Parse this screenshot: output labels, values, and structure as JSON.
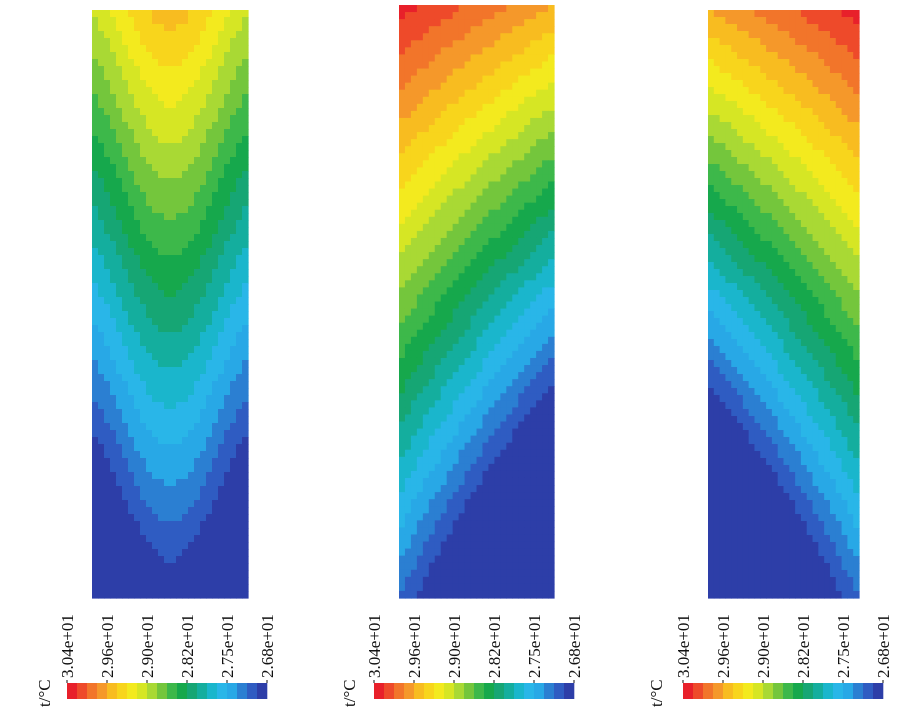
{
  "colormap_colors": [
    "#e8202a",
    "#ee4a2a",
    "#f2752a",
    "#f5982a",
    "#f8bc20",
    "#f8d51c",
    "#f3ea1e",
    "#d6e624",
    "#a9d934",
    "#74c63c",
    "#3db84a",
    "#16a84c",
    "#16a674",
    "#14ae9e",
    "#1ab6cc",
    "#29b6e8",
    "#28a8e6",
    "#2b7fd2",
    "#2f5cc2",
    "#2d3ea8"
  ],
  "chart_data": [
    {
      "type": "heatmap",
      "panel": 1,
      "field": "temperature contour",
      "pattern": "arc",
      "nx": 26,
      "ny": 84,
      "colorbar": {
        "label": "t/°C",
        "tick_labels": [
          "3.04e+01",
          "2.96e+01",
          "2.90e+01",
          "2.82e+01",
          "2.75e+01",
          "2.68e+01"
        ],
        "range": [
          26.8,
          30.4
        ]
      }
    },
    {
      "type": "heatmap",
      "panel": 2,
      "field": "temperature contour",
      "pattern": "hot-top-left",
      "nx": 26,
      "ny": 84,
      "colorbar": {
        "label": "t/°C",
        "tick_labels": [
          "3.04e+01",
          "2.96e+01",
          "2.90e+01",
          "2.82e+01",
          "2.75e+01",
          "2.68e+01"
        ],
        "range": [
          26.8,
          30.4
        ]
      }
    },
    {
      "type": "heatmap",
      "panel": 3,
      "field": "temperature contour",
      "pattern": "hot-top-right",
      "nx": 26,
      "ny": 84,
      "colorbar": {
        "label": "t/°C",
        "tick_labels": [
          "3.04e+01",
          "2.96e+01",
          "2.90e+01",
          "2.82e+01",
          "2.75e+01",
          "2.68e+01"
        ],
        "range": [
          26.8,
          30.4
        ]
      }
    }
  ]
}
